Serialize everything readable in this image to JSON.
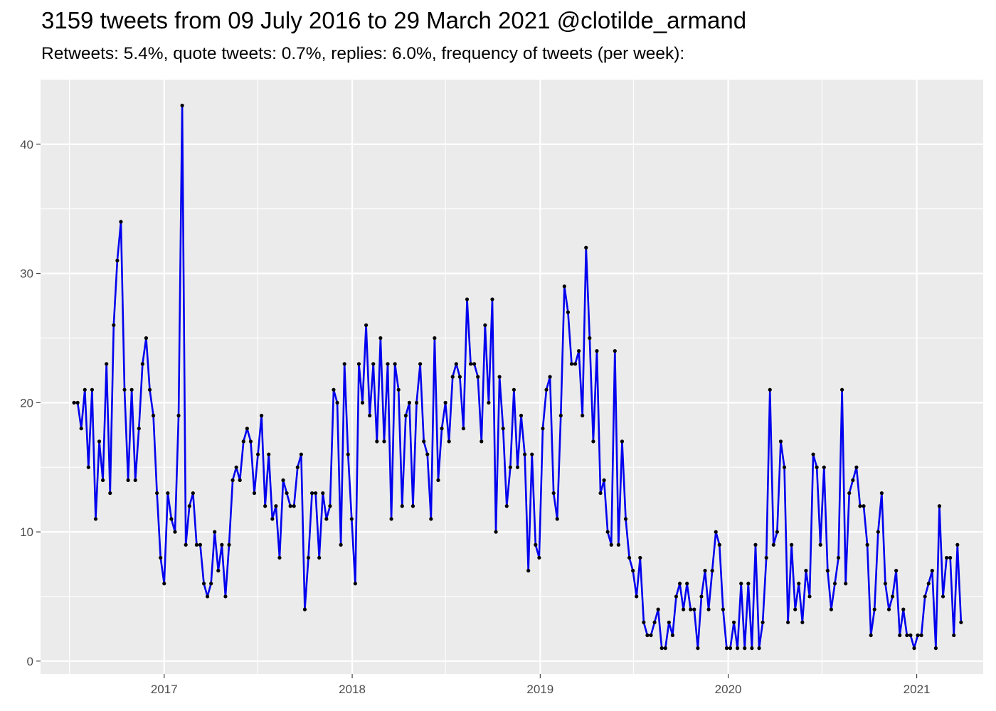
{
  "chart_data": {
    "type": "line",
    "title": "3159 tweets from 09 July 2016 to 29 March 2021 @clotilde_armand",
    "subtitle": "Retweets: 5.4%, quote tweets: 0.7%, replies: 6.0%, frequency of tweets (per week):",
    "xlabel": "",
    "ylabel": "",
    "x_start": "2016-07-10",
    "x_step": "1 week",
    "xlim": [
      "2016-05-06",
      "2021-05-10"
    ],
    "ylim": [
      -1,
      45
    ],
    "x_ticks": [
      "2017",
      "2018",
      "2019",
      "2020",
      "2021"
    ],
    "y_ticks": [
      0,
      10,
      20,
      30,
      40
    ],
    "grid": true,
    "series": [
      {
        "values": [
          20,
          20,
          18,
          21,
          15,
          21,
          11,
          17,
          14,
          23,
          13,
          26,
          31,
          34,
          21,
          14,
          21,
          14,
          18,
          23,
          25,
          21,
          19,
          13,
          8,
          6,
          13,
          11,
          10,
          19,
          43,
          9,
          12,
          13,
          9,
          9,
          6,
          5,
          6,
          10,
          7,
          9,
          5,
          9,
          14,
          15,
          14,
          17,
          18,
          17,
          13,
          16,
          19,
          12,
          16,
          11,
          12,
          8,
          14,
          13,
          12,
          12,
          15,
          16,
          4,
          8,
          13,
          13,
          8,
          13,
          11,
          12,
          21,
          20,
          9,
          23,
          16,
          11,
          6,
          23,
          20,
          26,
          19,
          23,
          17,
          25,
          17,
          23,
          11,
          23,
          21,
          12,
          19,
          20,
          12,
          20,
          23,
          17,
          16,
          11,
          25,
          14,
          18,
          20,
          17,
          22,
          23,
          22,
          18,
          28,
          23,
          23,
          22,
          17,
          26,
          20,
          28,
          10,
          22,
          18,
          12,
          15,
          21,
          15,
          19,
          16,
          7,
          16,
          9,
          8,
          18,
          21,
          22,
          13,
          11,
          19,
          29,
          27,
          23,
          23,
          24,
          19,
          32,
          25,
          17,
          24,
          13,
          14,
          10,
          9,
          24,
          9,
          17,
          11,
          8,
          7,
          5,
          8,
          3,
          2,
          2,
          3,
          4,
          1,
          1,
          3,
          2,
          5,
          6,
          4,
          6,
          4,
          4,
          1,
          5,
          7,
          4,
          7,
          10,
          9,
          4,
          1,
          1,
          3,
          1,
          6,
          1,
          6,
          1,
          9,
          1,
          3,
          8,
          21,
          9,
          10,
          17,
          15,
          3,
          9,
          4,
          6,
          3,
          7,
          5,
          16,
          15,
          9,
          15,
          7,
          4,
          6,
          8,
          21,
          6,
          13,
          14,
          15,
          12,
          12,
          9,
          2,
          4,
          10,
          13,
          6,
          4,
          5,
          7,
          2,
          4,
          2,
          2,
          1,
          2,
          2,
          5,
          6,
          7,
          1,
          12,
          5,
          8,
          8,
          2,
          9,
          3
        ]
      }
    ],
    "colors": {
      "line": "#0000ee",
      "point": "#000000",
      "panel": "#ebebeb",
      "grid": "#ffffff",
      "tick_label": "#4d4d4d"
    }
  }
}
